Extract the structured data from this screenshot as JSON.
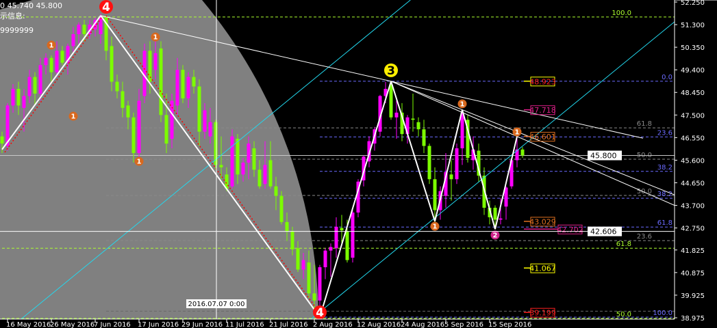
{
  "header": {
    "line1": "0 45.740 45.800",
    "line2": "示信息:",
    "line3": "9999999"
  },
  "colors": {
    "background": "#000000",
    "shade": "#808080",
    "bull_candle": "#ff00ff",
    "bear_candle": "#7cfc00",
    "zigzag": "#ffffff",
    "zigzag_shadow": "#ff0000",
    "channel": "#22d8ee",
    "axis": "#ffffff"
  },
  "chart_data": {
    "type": "candlestick",
    "ylim": [
      38.975,
      52.25
    ],
    "y_ticks": [
      "52.250",
      "51.300",
      "50.350",
      "49.400",
      "48.450",
      "47.500",
      "46.550",
      "45.600",
      "44.650",
      "43.700",
      "42.750",
      "41.825",
      "40.875",
      "39.925",
      "38.975"
    ],
    "x_ticks": [
      {
        "date": "2016-05-16",
        "label": "16 May 2016"
      },
      {
        "date": "2016-05-26",
        "label": "26 May 2016"
      },
      {
        "date": "2016-06-07",
        "label": "7 Jun 2016"
      },
      {
        "date": "2016-06-17",
        "label": "17 Jun 2016"
      },
      {
        "date": "2016-06-29",
        "label": "29 Jun 2016"
      },
      {
        "date": "2016-07-11",
        "label": "11 Jul 2016"
      },
      {
        "date": "2016-07-21",
        "label": "21 Jul 2016"
      },
      {
        "date": "2016-08-02",
        "label": "2 Aug 2016"
      },
      {
        "date": "2016-08-12",
        "label": "12 Aug 2016"
      },
      {
        "date": "2016-08-24",
        "label": "24 Aug 2016"
      },
      {
        "date": "2016-09-05",
        "label": "5 Sep 2016"
      },
      {
        "date": "2016-09-15",
        "label": "15 Sep 2016"
      }
    ],
    "candles_fields": [
      "date",
      "open",
      "high",
      "low",
      "close"
    ],
    "candles": [
      [
        "2016-05-13",
        46.6,
        46.8,
        45.9,
        46.3
      ],
      [
        "2016-05-16",
        46.2,
        48.0,
        46.0,
        47.9
      ],
      [
        "2016-05-17",
        47.9,
        48.8,
        47.6,
        48.6
      ],
      [
        "2016-05-18",
        48.6,
        48.9,
        47.5,
        47.9
      ],
      [
        "2016-05-19",
        47.8,
        48.6,
        46.8,
        48.3
      ],
      [
        "2016-05-20",
        48.3,
        49.4,
        48.0,
        49.1
      ],
      [
        "2016-05-23",
        49.1,
        49.3,
        47.9,
        48.4
      ],
      [
        "2016-05-24",
        48.4,
        49.9,
        48.1,
        49.6
      ],
      [
        "2016-05-25",
        49.6,
        50.1,
        49.2,
        49.9
      ],
      [
        "2016-05-26",
        49.9,
        50.0,
        48.9,
        49.3
      ],
      [
        "2016-05-27",
        49.3,
        50.6,
        49.1,
        50.2
      ],
      [
        "2016-05-30",
        50.2,
        50.4,
        49.6,
        49.7
      ],
      [
        "2016-05-31",
        49.7,
        50.5,
        49.2,
        50.4
      ],
      [
        "2016-06-01",
        50.4,
        51.2,
        50.1,
        50.9
      ],
      [
        "2016-06-02",
        50.9,
        51.4,
        50.5,
        51.3
      ],
      [
        "2016-06-03",
        51.3,
        51.5,
        50.6,
        50.9
      ],
      [
        "2016-06-06",
        50.9,
        51.5,
        50.7,
        51.3
      ],
      [
        "2016-06-07",
        51.1,
        51.6,
        50.8,
        51.5
      ],
      [
        "2016-06-08",
        50.9,
        51.75,
        50.5,
        51.65
      ],
      [
        "2016-06-09",
        51.6,
        51.7,
        49.8,
        50.2
      ],
      [
        "2016-06-10",
        50.4,
        50.8,
        48.5,
        48.9
      ],
      [
        "2016-06-13",
        48.9,
        49.2,
        48.2,
        48.5
      ],
      [
        "2016-06-14",
        48.5,
        48.9,
        47.4,
        47.8
      ],
      [
        "2016-06-15",
        47.9,
        48.1,
        46.9,
        47.4
      ],
      [
        "2016-06-16",
        47.4,
        47.6,
        45.5,
        45.9
      ],
      [
        "2016-06-17",
        45.9,
        48.6,
        45.7,
        48.1
      ],
      [
        "2016-06-20",
        48.3,
        50.5,
        48.0,
        50.2
      ],
      [
        "2016-06-21",
        50.2,
        50.6,
        48.4,
        48.9
      ],
      [
        "2016-06-22",
        49.4,
        50.8,
        49.0,
        50.1
      ],
      [
        "2016-06-23",
        50.3,
        50.6,
        47.2,
        47.5
      ],
      [
        "2016-06-24",
        47.5,
        48.4,
        45.9,
        46.3
      ],
      [
        "2016-06-27",
        46.5,
        48.4,
        46.1,
        48.1
      ],
      [
        "2016-06-28",
        47.9,
        49.9,
        47.5,
        49.4
      ],
      [
        "2016-06-29",
        49.4,
        49.6,
        48.0,
        48.2
      ],
      [
        "2016-06-30",
        48.2,
        49.3,
        47.8,
        49.1
      ],
      [
        "2016-07-01",
        49.1,
        49.4,
        48.4,
        48.7
      ],
      [
        "2016-07-04",
        48.7,
        49.0,
        46.2,
        46.8
      ],
      [
        "2016-07-05",
        46.8,
        48.0,
        46.5,
        47.7
      ],
      [
        "2016-07-06",
        46.6,
        47.8,
        46.3,
        47.2
      ],
      [
        "2016-07-07",
        47.2,
        47.3,
        45.2,
        45.4
      ],
      [
        "2016-07-08",
        45.4,
        46.6,
        44.8,
        45.3
      ],
      [
        "2016-07-11",
        45.0,
        45.3,
        44.3,
        44.4
      ],
      [
        "2016-07-12",
        44.5,
        46.9,
        44.4,
        46.6
      ],
      [
        "2016-07-13",
        46.5,
        46.7,
        44.6,
        45.0
      ],
      [
        "2016-07-14",
        45.0,
        45.7,
        44.7,
        45.5
      ],
      [
        "2016-07-15",
        45.5,
        46.6,
        44.8,
        46.3
      ],
      [
        "2016-07-18",
        46.1,
        46.4,
        44.9,
        45.2
      ],
      [
        "2016-07-19",
        45.2,
        45.6,
        44.4,
        44.5
      ],
      [
        "2016-07-20",
        44.6,
        46.4,
        44.4,
        45.4
      ],
      [
        "2016-07-21",
        45.6,
        46.4,
        44.4,
        44.5
      ],
      [
        "2016-07-22",
        44.5,
        44.9,
        43.5,
        44.1
      ],
      [
        "2016-07-25",
        44.1,
        44.3,
        42.9,
        43.0
      ],
      [
        "2016-07-26",
        43.0,
        43.4,
        42.2,
        42.6
      ],
      [
        "2016-07-27",
        42.6,
        42.8,
        41.6,
        41.85
      ],
      [
        "2016-07-28",
        41.9,
        42.2,
        40.9,
        41.0
      ],
      [
        "2016-07-29",
        41.0,
        41.7,
        40.6,
        41.4
      ],
      [
        "2016-08-01",
        41.3,
        41.8,
        39.8,
        40.0
      ],
      [
        "2016-08-02",
        40.0,
        41.2,
        39.1,
        39.7
      ],
      [
        "2016-08-03",
        39.7,
        41.2,
        39.0,
        41.1
      ],
      [
        "2016-08-04",
        41.1,
        41.9,
        40.6,
        41.8
      ],
      [
        "2016-08-05",
        41.8,
        42.1,
        40.7,
        41.95
      ],
      [
        "2016-08-08",
        41.9,
        43.2,
        41.5,
        42.8
      ],
      [
        "2016-08-09",
        42.75,
        43.3,
        42.0,
        42.65
      ],
      [
        "2016-08-10",
        42.6,
        43.1,
        41.3,
        41.4
      ],
      [
        "2016-08-11",
        41.5,
        43.5,
        41.3,
        43.4
      ],
      [
        "2016-08-12",
        43.4,
        44.8,
        43.2,
        44.7
      ],
      [
        "2016-08-15",
        44.75,
        45.8,
        44.5,
        45.75
      ],
      [
        "2016-08-16",
        45.55,
        46.6,
        45.3,
        46.4
      ],
      [
        "2016-08-17",
        46.3,
        47.0,
        46.0,
        46.9
      ],
      [
        "2016-08-18",
        46.8,
        48.35,
        46.6,
        48.3
      ],
      [
        "2016-08-19",
        48.3,
        48.9,
        48.0,
        48.6
      ],
      [
        "2016-08-22",
        48.8,
        48.92,
        47.3,
        47.4
      ],
      [
        "2016-08-23",
        47.4,
        48.1,
        46.5,
        47.6
      ],
      [
        "2016-08-24",
        47.6,
        48.0,
        46.4,
        46.7
      ],
      [
        "2016-08-25",
        46.7,
        47.5,
        46.3,
        47.4
      ],
      [
        "2016-08-26",
        47.35,
        48.4,
        46.8,
        47.3
      ],
      [
        "2016-08-29",
        47.2,
        47.4,
        46.6,
        46.9
      ],
      [
        "2016-08-30",
        46.9,
        47.3,
        45.9,
        46.2
      ],
      [
        "2016-08-31",
        46.2,
        46.3,
        44.6,
        44.8
      ],
      [
        "2016-09-01",
        44.8,
        45.3,
        43.0,
        43.5
      ],
      [
        "2016-09-02",
        43.5,
        44.5,
        43.1,
        44.3
      ],
      [
        "2016-09-05",
        44.1,
        45.9,
        43.6,
        45.1
      ],
      [
        "2016-09-06",
        45.0,
        45.6,
        43.9,
        44.8
      ],
      [
        "2016-09-07",
        44.8,
        46.3,
        44.6,
        46.1
      ],
      [
        "2016-09-08",
        46.1,
        47.72,
        45.4,
        47.6
      ],
      [
        "2016-09-09",
        47.3,
        47.5,
        45.5,
        45.7
      ],
      [
        "2016-09-12",
        45.6,
        46.6,
        45.2,
        46.05
      ],
      [
        "2016-09-13",
        46.0,
        46.3,
        44.7,
        44.95
      ],
      [
        "2016-09-14",
        44.95,
        45.3,
        43.3,
        43.6
      ],
      [
        "2016-09-15",
        43.6,
        43.9,
        42.9,
        43.2
      ],
      [
        "2016-09-16",
        43.6,
        43.7,
        42.7,
        43.1
      ],
      [
        "2016-09-19",
        43.1,
        44.0,
        42.9,
        43.15
      ],
      [
        "2016-09-20",
        43.65,
        44.5,
        43.1,
        44.45
      ],
      [
        "2016-09-21",
        44.5,
        45.7,
        44.4,
        45.6
      ],
      [
        "2016-09-22",
        45.6,
        46.6,
        45.3,
        46.05
      ],
      [
        "2016-09-23",
        46.05,
        46.15,
        45.7,
        45.8
      ]
    ],
    "current_price": {
      "label": "45.800",
      "price": 45.8
    },
    "crosshair": {
      "date": "2016-07-07",
      "time_label": "2016.07.07 0:00",
      "price_label": "42.606",
      "price": 42.606
    },
    "zigzag": [
      [
        "2016-05-13",
        46.05
      ],
      [
        "2016-06-08",
        51.68
      ],
      [
        "2016-08-03",
        39.0
      ],
      [
        "2016-08-22",
        48.92
      ],
      [
        "2016-09-01",
        43.03
      ],
      [
        "2016-09-08",
        47.72
      ],
      [
        "2016-09-16",
        42.7
      ],
      [
        "2016-09-22",
        46.6
      ]
    ],
    "trend_lines": [
      [
        [
          "2016-06-08",
          51.68
        ],
        [
          "2016-08-22",
          48.92
        ],
        "2016-09-23",
        22
      ],
      [
        [
          "2016-08-22",
          48.92
        ],
        [
          "2016-09-08",
          47.72
        ],
        "2016-09-23",
        30
      ],
      [
        [
          "2016-08-22",
          48.92
        ],
        [
          "2016-09-22",
          46.6
        ],
        "2016-09-23",
        30
      ]
    ],
    "channel_lines": [
      [
        [
          "2016-05-27",
          40.15
        ],
        [
          "2016-08-05",
          49.59
        ]
      ],
      [
        [
          "2016-08-03",
          39.22
        ],
        [
          "2016-09-16",
          45.25
        ]
      ]
    ],
    "fib_levels": [
      {
        "label": "100.0",
        "price": 51.62,
        "color": "#adff2f",
        "from": "2016-05-13"
      },
      {
        "label": "61.8",
        "price": 41.9,
        "color": "#adff2f",
        "from": "2016-05-13"
      },
      {
        "label": "50.0",
        "price": 38.95,
        "color": "#adff2f",
        "from": "2016-05-13"
      },
      {
        "label": "61.8",
        "price": 46.96,
        "color": "#8a8a8a",
        "from": "2016-06-09"
      },
      {
        "label": "50.0",
        "price": 45.64,
        "color": "#8a8a8a",
        "from": "2016-06-09"
      },
      {
        "label": "50.0",
        "price": 44.12,
        "color": "#8a8a8a",
        "from": "2016-06-09"
      },
      {
        "label": "23.6",
        "price": 42.22,
        "color": "#8a8a8a",
        "from": "2016-06-09"
      },
      {
        "label": "",
        "price": 39.25,
        "color": "#6a6a6a",
        "from": "2016-06-09"
      },
      {
        "label": "0.0",
        "price": 48.92,
        "color": "#6b6bff",
        "from": "2016-08-03"
      },
      {
        "label": "23.6",
        "price": 46.58,
        "color": "#6b6bff",
        "from": "2016-08-03"
      },
      {
        "label": "38.2",
        "price": 45.13,
        "color": "#6b6bff",
        "from": "2016-08-03"
      },
      {
        "label": "38.2",
        "price": 44.0,
        "color": "#6b6bff",
        "from": "2016-08-03"
      },
      {
        "label": "61.8",
        "price": 42.79,
        "color": "#6b6bff",
        "from": "2016-08-03"
      },
      {
        "label": "100.0",
        "price": 39.0,
        "color": "#6b6bff",
        "from": "2016-08-03"
      }
    ],
    "price_tags": [
      {
        "label": "48.923",
        "price": 48.923,
        "color": "#ff2020",
        "border": "#ffff00"
      },
      {
        "label": "47.718",
        "price": 47.718,
        "color": "#e0208a",
        "border": "#e0208a"
      },
      {
        "label": "46.601",
        "price": 46.601,
        "color": "#e07020",
        "border": "#e07020"
      },
      {
        "label": "43.029",
        "price": 43.029,
        "color": "#e07020",
        "border": "#e07020"
      },
      {
        "label": "42.702",
        "price": 42.702,
        "color": "#e0208a",
        "border": "#e0208a"
      },
      {
        "label": "41.067",
        "price": 41.067,
        "color": "#ffff00",
        "border": "#ffff00"
      },
      {
        "label": "39.199",
        "price": 39.199,
        "color": "#ff2020",
        "border": "#ff2020"
      }
    ],
    "markers": [
      {
        "label": "4",
        "date": "2016-06-09",
        "price": 52.05,
        "color": "#ff1010",
        "text": "#ffffff",
        "size": "big"
      },
      {
        "label": "4",
        "date": "2016-08-03",
        "price": 38.95,
        "color": "#ff1010",
        "text": "#ffffff",
        "size": "big"
      },
      {
        "label": "3",
        "date": "2016-08-22",
        "price": 49.38,
        "color": "#ffee00",
        "text": "#000000",
        "size": "big"
      },
      {
        "label": "1",
        "date": "2016-05-26",
        "price": 50.44,
        "color": "#d8681e",
        "text": "#ffffff",
        "size": "small"
      },
      {
        "label": "1",
        "date": "2016-06-01",
        "price": 47.45,
        "color": "#d8681e",
        "text": "#ffffff",
        "size": "small"
      },
      {
        "label": "1",
        "date": "2016-06-22",
        "price": 50.78,
        "color": "#d8681e",
        "text": "#ffffff",
        "size": "small"
      },
      {
        "label": "1",
        "date": "2016-06-17",
        "price": 45.55,
        "color": "#d8681e",
        "text": "#ffffff",
        "size": "small"
      },
      {
        "label": "1",
        "date": "2016-09-01",
        "price": 42.82,
        "color": "#d8681e",
        "text": "#ffffff",
        "size": "small"
      },
      {
        "label": "1",
        "date": "2016-09-08",
        "price": 47.97,
        "color": "#d8681e",
        "text": "#ffffff",
        "size": "small"
      },
      {
        "label": "1",
        "date": "2016-09-22",
        "price": 46.79,
        "color": "#d8681e",
        "text": "#ffffff",
        "size": "small"
      },
      {
        "label": "2",
        "date": "2016-09-16",
        "price": 42.45,
        "color": "#d0208a",
        "text": "#ffffff",
        "size": "small"
      }
    ]
  }
}
